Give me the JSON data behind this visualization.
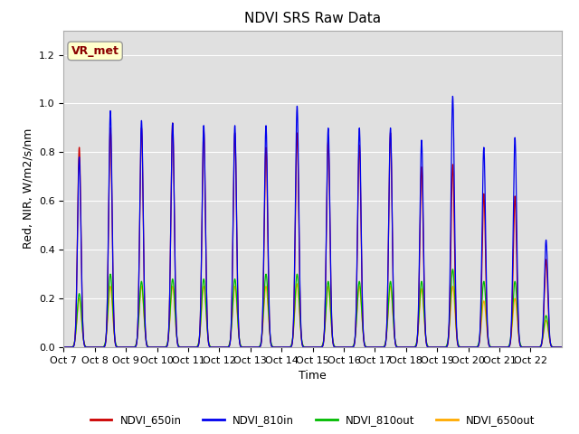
{
  "title": "NDVI SRS Raw Data",
  "xlabel": "Time",
  "ylabel": "Red, NIR, W/m2/s/nm",
  "ylim": [
    0.0,
    1.3
  ],
  "yticks": [
    0.0,
    0.2,
    0.4,
    0.6,
    0.8,
    1.0,
    1.2
  ],
  "label_annotation": "VR_met",
  "bg_color": "#e0e0e0",
  "colors": {
    "NDVI_650in": "#cc0000",
    "NDVI_810in": "#0000ee",
    "NDVI_810out": "#00bb00",
    "NDVI_650out": "#ffaa00"
  },
  "xtick_labels": [
    "Oct 7",
    "Oct 8",
    "Oct 9",
    "Oct 10",
    "Oct 11",
    "Oct 12",
    "Oct 13",
    "Oct 14",
    "Oct 15",
    "Oct 16",
    "Oct 17",
    "Oct 18",
    "Oct 19",
    "Oct 20",
    "Oct 21",
    "Oct 22"
  ],
  "day_peaks_810in": [
    0.78,
    0.97,
    0.93,
    0.92,
    0.91,
    0.91,
    0.91,
    0.99,
    0.9,
    0.9,
    0.9,
    0.85,
    1.03,
    0.82,
    0.86,
    0.44
  ],
  "day_peaks_650in": [
    0.82,
    0.9,
    0.9,
    0.92,
    0.89,
    0.88,
    0.82,
    0.88,
    0.85,
    0.83,
    0.88,
    0.74,
    0.75,
    0.63,
    0.62,
    0.36
  ],
  "day_peaks_810out": [
    0.22,
    0.3,
    0.27,
    0.28,
    0.28,
    0.28,
    0.3,
    0.3,
    0.27,
    0.27,
    0.27,
    0.27,
    0.32,
    0.27,
    0.27,
    0.13
  ],
  "day_peaks_650out": [
    0.2,
    0.25,
    0.25,
    0.25,
    0.25,
    0.25,
    0.25,
    0.26,
    0.25,
    0.25,
    0.25,
    0.24,
    0.25,
    0.19,
    0.2,
    0.11
  ],
  "sigma_in": 0.055,
  "sigma_out": 0.07,
  "n_days": 16,
  "points_per_day": 200
}
